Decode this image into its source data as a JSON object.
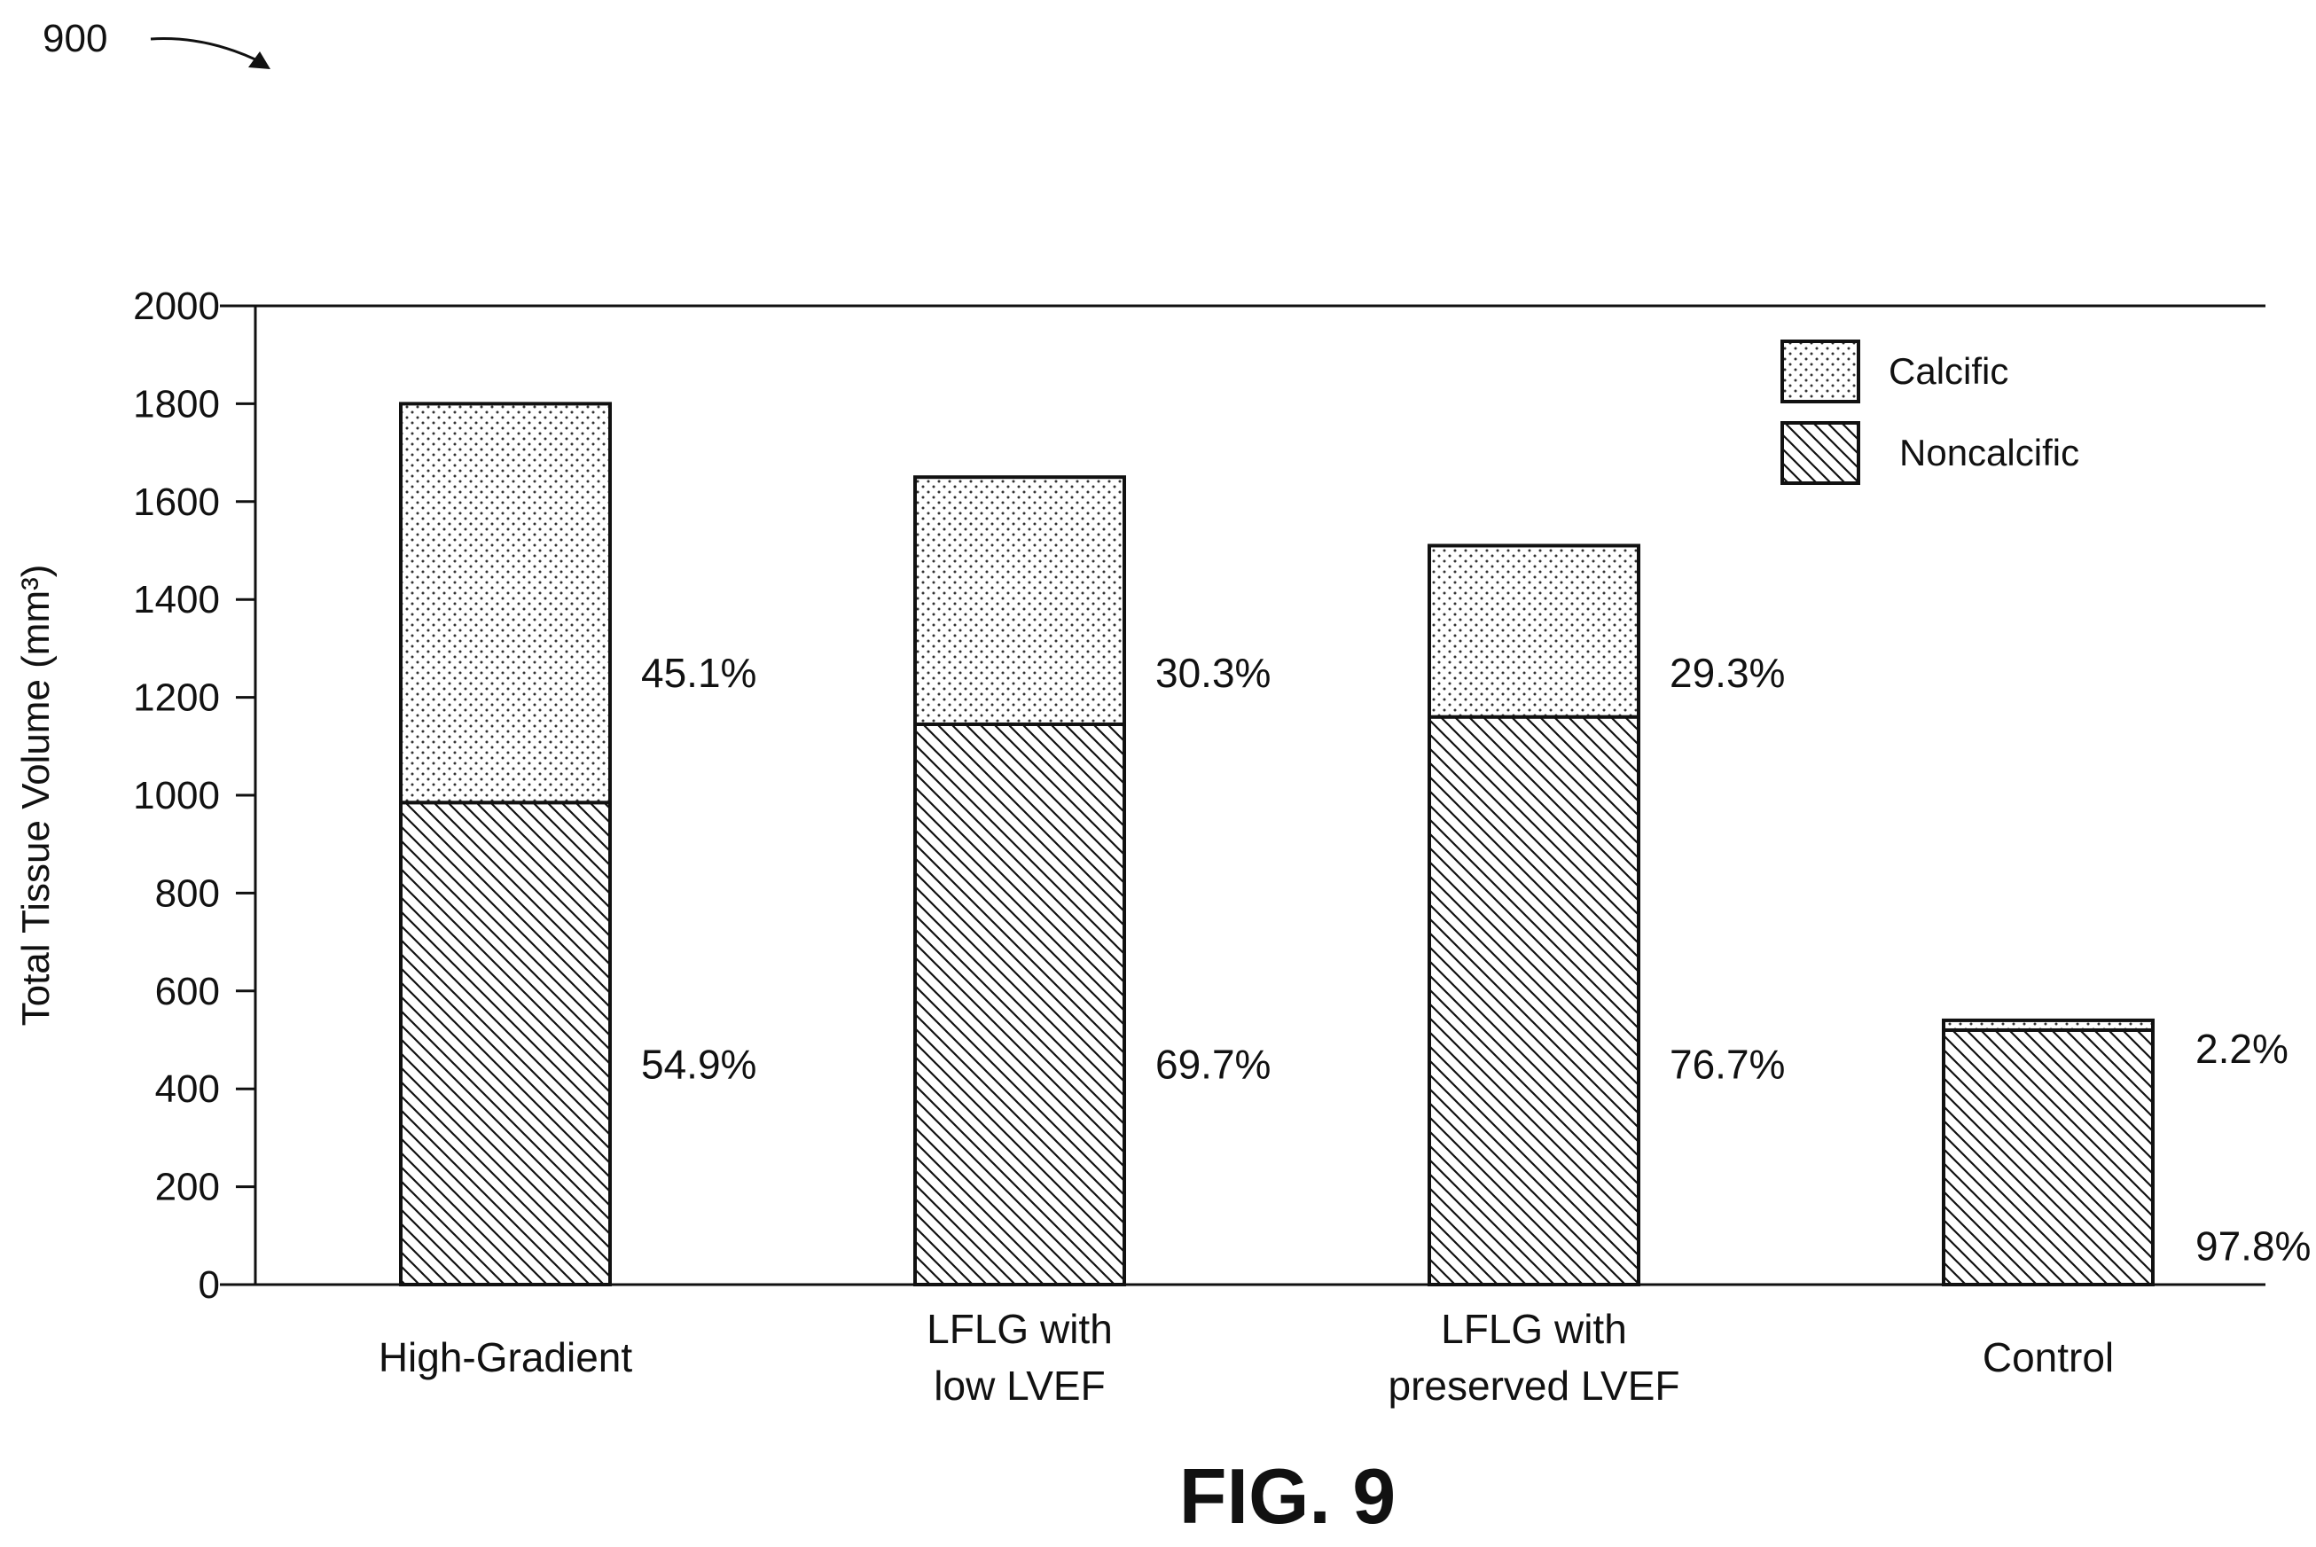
{
  "figure": {
    "ref_number": "900",
    "caption": "FIG. 9"
  },
  "chart_data": {
    "type": "bar",
    "stacked": true,
    "title": "",
    "xlabel": "",
    "ylabel": "Total Tissue Volume (mm³)",
    "ylim": [
      0,
      2000
    ],
    "yticks": [
      0,
      200,
      400,
      600,
      800,
      1000,
      1200,
      1400,
      1600,
      1800,
      2000
    ],
    "grid": false,
    "legend_position": "top-right",
    "categories": [
      [
        "High-Gradient"
      ],
      [
        "LFLG with",
        "low LVEF"
      ],
      [
        "LFLG with",
        "preserved LVEF"
      ],
      [
        "Control"
      ]
    ],
    "series": [
      {
        "name": "Noncalcific",
        "pattern": "diagonal-hatch",
        "values": [
          985,
          1145,
          1160,
          520
        ],
        "labels": [
          "54.9%",
          "69.7%",
          "76.7%",
          "97.8%"
        ]
      },
      {
        "name": "Calcific",
        "pattern": "stipple",
        "values": [
          815,
          505,
          350,
          20
        ],
        "labels": [
          "45.1%",
          "30.3%",
          "29.3%",
          "2.2%"
        ]
      }
    ],
    "legend_order": [
      "Calcific",
      "Noncalcific"
    ]
  }
}
